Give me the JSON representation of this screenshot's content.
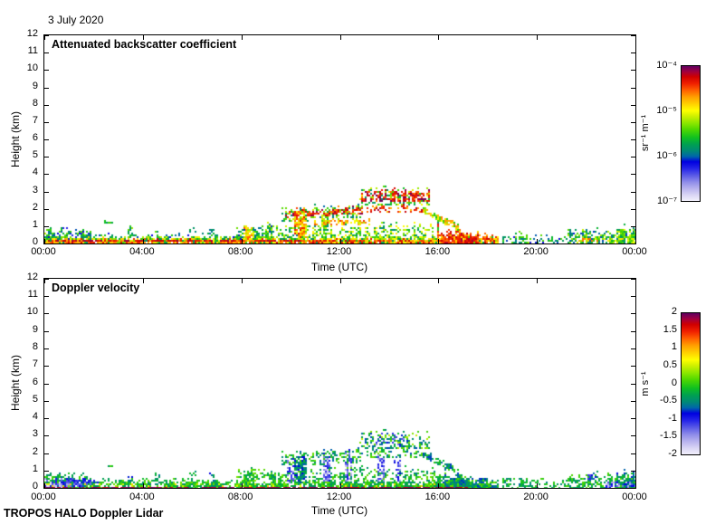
{
  "figure": {
    "date_label": "3 July 2020",
    "footer": "TROPOS HALO Doppler Lidar",
    "background": "#ffffff",
    "axis_color": "#000000"
  },
  "time_axis": {
    "label": "Time (UTC)",
    "tick_hours": [
      0,
      4,
      8,
      12,
      16,
      20,
      24
    ],
    "tick_labels": [
      "00:00",
      "04:00",
      "08:00",
      "12:00",
      "16:00",
      "20:00",
      "00:00"
    ]
  },
  "height_axis": {
    "label": "Height (km)",
    "min": 0,
    "max": 12,
    "tick_step": 1
  },
  "colormap": [
    {
      "p": 0.0,
      "c": "#f2f0fb"
    },
    {
      "p": 0.04,
      "c": "#dcd8f5"
    },
    {
      "p": 0.09,
      "c": "#b9b4ee"
    },
    {
      "p": 0.14,
      "c": "#8f8ce9"
    },
    {
      "p": 0.19,
      "c": "#5a5ae6"
    },
    {
      "p": 0.24,
      "c": "#2525e8"
    },
    {
      "p": 0.29,
      "c": "#0000e0"
    },
    {
      "p": 0.33,
      "c": "#0066aa"
    },
    {
      "p": 0.37,
      "c": "#008878"
    },
    {
      "p": 0.42,
      "c": "#00a050"
    },
    {
      "p": 0.47,
      "c": "#10c020"
    },
    {
      "p": 0.53,
      "c": "#50d800"
    },
    {
      "p": 0.58,
      "c": "#90e800"
    },
    {
      "p": 0.63,
      "c": "#d0f000"
    },
    {
      "p": 0.67,
      "c": "#ffff00"
    },
    {
      "p": 0.72,
      "c": "#ffd000"
    },
    {
      "p": 0.77,
      "c": "#ffa000"
    },
    {
      "p": 0.82,
      "c": "#ff6000"
    },
    {
      "p": 0.87,
      "c": "#f02000"
    },
    {
      "p": 0.92,
      "c": "#d00000"
    },
    {
      "p": 0.96,
      "c": "#a00040"
    },
    {
      "p": 1.0,
      "c": "#600060"
    }
  ],
  "chart_data": [
    {
      "type": "heatmap",
      "title": "Attenuated backscatter coefficient",
      "xlabel": "Time (UTC)",
      "ylabel": "Height (km)",
      "x_range_hours": [
        0,
        24
      ],
      "y_range_km": [
        0,
        12
      ],
      "v_range": [
        -7,
        -4
      ],
      "colorbar": {
        "scale": "log",
        "unit": "sr⁻¹ m⁻¹",
        "tick_labels": [
          "10⁻⁴",
          "10⁻⁵",
          "10⁻⁶",
          "10⁻⁷"
        ],
        "vmin": "1e-7",
        "vmax": "1e-4"
      },
      "features": [
        {
          "t": [
            0,
            1.9
          ],
          "h": [
            0.05,
            0.85
          ],
          "v": [
            -6.3,
            -5.3
          ],
          "c": 0.75
        },
        {
          "t": [
            0,
            0.6
          ],
          "h": [
            0.05,
            0.6
          ],
          "v": [
            -5.9,
            -5.1
          ],
          "c": 0.8
        },
        {
          "t": [
            1.9,
            8.0
          ],
          "h": [
            0.28,
            0.6
          ],
          "v": [
            -6.2,
            -5.4
          ],
          "c": 0.3
        },
        {
          "t": [
            0,
            18.4
          ],
          "h": [
            0.04,
            0.42
          ],
          "v": [
            -5.9,
            -4.8
          ],
          "c": 0.88
        },
        {
          "t": [
            0,
            16.0
          ],
          "h": [
            0.1,
            0.3
          ],
          "v": [
            -4.9,
            -4.2
          ],
          "c": 0.8
        },
        {
          "t": [
            0.5,
            10.5
          ],
          "h": [
            0.14,
            0.24
          ],
          "v": [
            -4.4,
            -4.05
          ],
          "c": 0.7
        },
        {
          "t": [
            2.35,
            2.75
          ],
          "h": [
            1.22,
            1.38
          ],
          "v": [
            -6.0,
            -5.4
          ],
          "c": 0.5
        },
        {
          "t": [
            3.4,
            3.55
          ],
          "h": [
            0.4,
            0.95
          ],
          "v": [
            -6.0,
            -5.2
          ],
          "c": 0.55
        },
        {
          "t": [
            4.55,
            4.7
          ],
          "h": [
            0.35,
            0.8
          ],
          "v": [
            -6.0,
            -5.3
          ],
          "c": 0.5
        },
        {
          "t": [
            5.9,
            6.15
          ],
          "h": [
            0.7,
            1.0
          ],
          "v": [
            -6.0,
            -5.4
          ],
          "c": 0.5
        },
        {
          "t": [
            6.75,
            6.9
          ],
          "h": [
            0.35,
            1.0
          ],
          "v": [
            -6.1,
            -5.3
          ],
          "c": 0.5
        },
        {
          "t": [
            7.8,
            10.6
          ],
          "h": [
            0.3,
            1.05
          ],
          "v": [
            -6.1,
            -5.1
          ],
          "c": 0.5
        },
        {
          "t": [
            8.15,
            8.5
          ],
          "h": [
            0.15,
            1.15
          ],
          "v": [
            -5.3,
            -4.5
          ],
          "c": 0.85
        },
        {
          "t": [
            9.0,
            9.2
          ],
          "h": [
            0.3,
            1.3
          ],
          "v": [
            -5.8,
            -5.0
          ],
          "c": 0.55
        },
        {
          "t": [
            9.7,
            12.9
          ],
          "h": [
            1.3,
            2.1
          ],
          "h2": [
            1.5,
            2.3
          ],
          "v": [
            -6.0,
            -5.1
          ],
          "c": 0.4
        },
        {
          "t": [
            9.8,
            12.9
          ],
          "h": [
            1.55,
            1.95
          ],
          "h2": [
            1.75,
            2.15
          ],
          "v": [
            -4.7,
            -4.05
          ],
          "c": 0.6
        },
        {
          "t": [
            10.2,
            10.6
          ],
          "h": [
            0.35,
            1.85
          ],
          "v": [
            -5.1,
            -4.3
          ],
          "c": 0.85
        },
        {
          "t": [
            11.3,
            11.5
          ],
          "h": [
            0.5,
            1.9
          ],
          "v": [
            -5.7,
            -4.9
          ],
          "c": 0.5
        },
        {
          "t": [
            10.6,
            16.0
          ],
          "h": [
            0.28,
            1.15
          ],
          "v": [
            -5.9,
            -4.9
          ],
          "c": 0.42
        },
        {
          "t": [
            11.0,
            13.2
          ],
          "h": [
            1.1,
            1.5
          ],
          "v": [
            -5.2,
            -4.4
          ],
          "c": 0.45
        },
        {
          "t": [
            13.1,
            15.4
          ],
          "h": [
            1.8,
            2.25
          ],
          "v": [
            -4.8,
            -4.1
          ],
          "c": 0.5
        },
        {
          "t": [
            12.85,
            15.65
          ],
          "h": [
            2.25,
            3.25
          ],
          "v": [
            -5.9,
            -4.9
          ],
          "c": 0.35
        },
        {
          "t": [
            12.9,
            15.6
          ],
          "h": [
            2.45,
            3.1
          ],
          "v": [
            -4.6,
            -4.0
          ],
          "c": 0.7
        },
        {
          "t": [
            15.4,
            16.8
          ],
          "h": [
            1.75,
            2.15
          ],
          "h2": [
            0.75,
            1.15
          ],
          "v": [
            -5.6,
            -4.6
          ],
          "c": 0.8
        },
        {
          "t": [
            16.0,
            18.4
          ],
          "h": [
            0.05,
            1.0
          ],
          "h2": [
            0.05,
            0.45
          ],
          "v": [
            -5.0,
            -4.2
          ],
          "c": 0.92
        },
        {
          "t": [
            16.1,
            17.6
          ],
          "h": [
            0.1,
            0.6
          ],
          "v": [
            -4.6,
            -4.1
          ],
          "c": 0.75
        },
        {
          "t": [
            18.6,
            21.3
          ],
          "h": [
            0.05,
            0.55
          ],
          "v": [
            -6.2,
            -5.2
          ],
          "c": 0.4
        },
        {
          "t": [
            19.3,
            19.6
          ],
          "h": [
            0.05,
            0.75
          ],
          "v": [
            -6.0,
            -5.3
          ],
          "c": 0.55
        },
        {
          "t": [
            21.3,
            24
          ],
          "h": [
            0.05,
            0.8
          ],
          "v": [
            -6.1,
            -5.1
          ],
          "c": 0.7
        },
        {
          "t": [
            21.6,
            23.7
          ],
          "h": [
            0.12,
            0.38
          ],
          "v": [
            -5.2,
            -4.5
          ],
          "c": 0.5
        },
        {
          "t": [
            23.3,
            24
          ],
          "h": [
            0.05,
            0.95
          ],
          "v": [
            -5.9,
            -5.0
          ],
          "c": 0.7
        }
      ]
    },
    {
      "type": "heatmap",
      "title": "Doppler velocity",
      "xlabel": "Time (UTC)",
      "ylabel": "Height (km)",
      "x_range_hours": [
        0,
        24
      ],
      "y_range_km": [
        0,
        12
      ],
      "v_range": [
        -2,
        2
      ],
      "colorbar": {
        "scale": "linear",
        "unit": "m s⁻¹",
        "tick_labels": [
          "2",
          "1.5",
          "1",
          "0.5",
          "0",
          "-0.5",
          "-1",
          "-1.5",
          "-2"
        ],
        "vmin": "-2",
        "vmax": "2"
      },
      "features": [
        {
          "t": [
            0,
            18.4
          ],
          "h": [
            0.05,
            0.42
          ],
          "v": [
            -0.5,
            0.25
          ],
          "c": 0.85
        },
        {
          "t": [
            0,
            1.9
          ],
          "h": [
            0.05,
            0.85
          ],
          "v": [
            -0.6,
            0.1
          ],
          "c": 0.7
        },
        {
          "t": [
            0,
            1.9
          ],
          "h": [
            0.08,
            0.55
          ],
          "v": [
            -1.6,
            -0.5
          ],
          "c": 0.85
        },
        {
          "t": [
            0,
            0.7
          ],
          "h": [
            0.05,
            0.35
          ],
          "v": [
            -2.0,
            -1.2
          ],
          "c": 0.9
        },
        {
          "t": [
            0.9,
            2.2
          ],
          "h": [
            0.3,
            0.55
          ],
          "v": [
            -1.4,
            -0.6
          ],
          "c": 0.6
        },
        {
          "t": [
            1.9,
            8.0
          ],
          "h": [
            0.28,
            0.6
          ],
          "v": [
            -0.5,
            0.2
          ],
          "c": 0.3
        },
        {
          "t": [
            0,
            16.0
          ],
          "h": [
            0.08,
            0.3
          ],
          "v": [
            0.3,
            0.9
          ],
          "c": 0.15
        },
        {
          "t": [
            2.35,
            2.75
          ],
          "h": [
            1.22,
            1.38
          ],
          "v": [
            -0.4,
            0.1
          ],
          "c": 0.5
        },
        {
          "t": [
            3.4,
            3.55
          ],
          "h": [
            0.4,
            0.95
          ],
          "v": [
            -0.9,
            -0.2
          ],
          "c": 0.55
        },
        {
          "t": [
            4.55,
            4.7
          ],
          "h": [
            0.35,
            0.8
          ],
          "v": [
            -0.6,
            0.0
          ],
          "c": 0.5
        },
        {
          "t": [
            5.9,
            6.15
          ],
          "h": [
            0.7,
            1.0
          ],
          "v": [
            -0.5,
            0.1
          ],
          "c": 0.5
        },
        {
          "t": [
            6.75,
            6.9
          ],
          "h": [
            0.35,
            1.0
          ],
          "v": [
            -0.9,
            -0.2
          ],
          "c": 0.5
        },
        {
          "t": [
            7.8,
            10.6
          ],
          "h": [
            0.3,
            1.05
          ],
          "v": [
            -0.5,
            0.3
          ],
          "c": 0.5
        },
        {
          "t": [
            8.15,
            8.5
          ],
          "h": [
            0.15,
            1.15
          ],
          "v": [
            -0.4,
            0.3
          ],
          "c": 0.8
        },
        {
          "t": [
            9.7,
            12.9
          ],
          "h": [
            1.3,
            2.1
          ],
          "h2": [
            1.5,
            2.3
          ],
          "v": [
            -0.7,
            0.2
          ],
          "c": 0.45
        },
        {
          "t": [
            9.9,
            10.15
          ],
          "h": [
            0.3,
            1.6
          ],
          "v": [
            -1.7,
            -0.9
          ],
          "c": 0.7
        },
        {
          "t": [
            10.2,
            10.6
          ],
          "h": [
            0.35,
            1.85
          ],
          "v": [
            -0.9,
            -0.1
          ],
          "c": 0.85
        },
        {
          "t": [
            10.6,
            16.0
          ],
          "h": [
            0.28,
            1.15
          ],
          "v": [
            -0.6,
            0.25
          ],
          "c": 0.42
        },
        {
          "t": [
            11.35,
            11.55
          ],
          "h": [
            0.4,
            2.0
          ],
          "v": [
            -1.8,
            -0.9
          ],
          "c": 0.65
        },
        {
          "t": [
            12.25,
            12.45
          ],
          "h": [
            0.4,
            2.1
          ],
          "v": [
            -1.8,
            -0.9
          ],
          "c": 0.6
        },
        {
          "t": [
            13.1,
            15.4
          ],
          "h": [
            1.8,
            2.25
          ],
          "v": [
            -0.7,
            0.3
          ],
          "c": 0.5
        },
        {
          "t": [
            12.85,
            15.65
          ],
          "h": [
            2.25,
            3.25
          ],
          "v": [
            -0.8,
            0.5
          ],
          "c": 0.45
        },
        {
          "t": [
            13.4,
            14.6
          ],
          "h": [
            2.5,
            3.1
          ],
          "v": [
            -1.5,
            -0.6
          ],
          "c": 0.25
        },
        {
          "t": [
            13.55,
            13.75
          ],
          "h": [
            0.4,
            1.9
          ],
          "v": [
            -1.8,
            -0.9
          ],
          "c": 0.6
        },
        {
          "t": [
            14.25,
            14.45
          ],
          "h": [
            0.4,
            1.7
          ],
          "v": [
            -1.6,
            -0.8
          ],
          "c": 0.55
        },
        {
          "t": [
            15.4,
            16.8
          ],
          "h": [
            1.75,
            2.15
          ],
          "h2": [
            0.75,
            1.15
          ],
          "v": [
            -0.8,
            0.1
          ],
          "c": 0.8
        },
        {
          "t": [
            16.0,
            18.4
          ],
          "h": [
            0.05,
            1.0
          ],
          "h2": [
            0.05,
            0.45
          ],
          "v": [
            -0.8,
            0.15
          ],
          "c": 0.92
        },
        {
          "t": [
            18.6,
            21.3
          ],
          "h": [
            0.05,
            0.55
          ],
          "v": [
            -0.6,
            0.1
          ],
          "c": 0.4
        },
        {
          "t": [
            19.3,
            19.6
          ],
          "h": [
            0.05,
            0.75
          ],
          "v": [
            -0.7,
            0.0
          ],
          "c": 0.55
        },
        {
          "t": [
            21.3,
            24
          ],
          "h": [
            0.05,
            0.8
          ],
          "v": [
            -0.6,
            0.15
          ],
          "c": 0.7
        },
        {
          "t": [
            22.1,
            22.35
          ],
          "h": [
            0.5,
            0.9
          ],
          "v": [
            -1.2,
            -0.5
          ],
          "c": 0.5
        },
        {
          "t": [
            22.8,
            24
          ],
          "h": [
            0.05,
            0.45
          ],
          "v": [
            -1.8,
            -0.8
          ],
          "c": 0.5
        },
        {
          "t": [
            23.3,
            24
          ],
          "h": [
            0.05,
            0.95
          ],
          "v": [
            -0.9,
            -0.1
          ],
          "c": 0.6
        },
        {
          "t": [
            0,
            17.2
          ],
          "h": [
            0.0,
            0.07
          ],
          "v": [
            1.7,
            2.0
          ],
          "c": 0.92
        }
      ]
    }
  ]
}
